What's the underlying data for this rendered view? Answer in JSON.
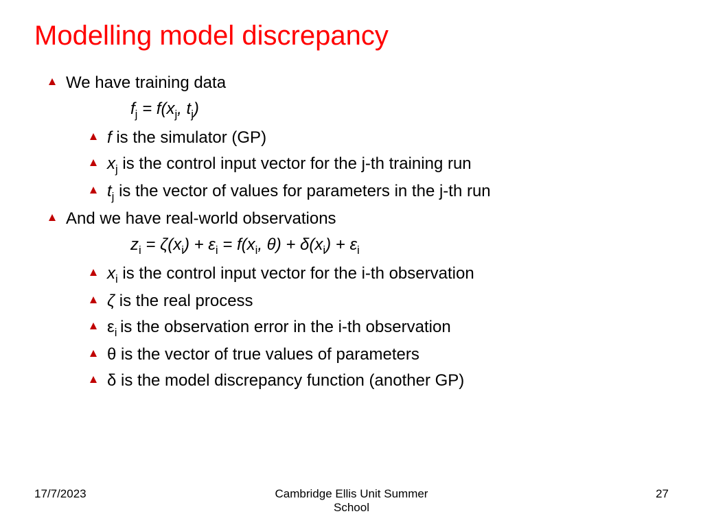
{
  "title": "Modelling model discrepancy",
  "title_color": "#ff0000",
  "title_fontsize": 40,
  "body_fontsize": 24,
  "footer_fontsize": 17,
  "bullet_color": "#c00000",
  "bullet_size": 12,
  "background_color": "#ffffff",
  "text_color": "#000000",
  "bullets": {
    "top1": "We have training data",
    "eq1_html": "<span class='ital'>f</span><span class='sub'>j</span> = <span class='ital'>f</span>(<span class='ital'>x</span><span class='sub'>j</span>, <span class='ital'>t</span><span class='sub'>j</span>)",
    "s1a_html": "<span class='ital'>f</span> is the simulator (GP)",
    "s1b_html": "<span class='ital'>x</span><span class='sub'>j</span> is the control input vector for the j-th training run",
    "s1c_html": "<span class='ital'>t</span><span class='sub'>j</span> is the vector of values for parameters in the j-th run",
    "top2": "And we have real-world observations",
    "eq2_html": "<span class='ital'>z</span><span class='subi'>i</span> = <span class='ital'>ζ</span>(<span class='ital'>x</span><span class='subi'>i</span>) + ε<span class='subi'>i</span> = <span class='ital'>f</span>(<span class='ital'>x</span><span class='subi'>i</span>, θ) + δ(<span class='ital'>x</span><span class='subi'>i</span>) + ε<span class='subi'>i</span>",
    "s2a_html": "<span class='ital'>x</span><span class='subi'>i</span> is the control input vector for the i-th observation",
    "s2b_html": "<span class='ital'>ζ</span> is the real process",
    "s2c_html": "ε<span class='subi'>i </span>is the observation error in the i-th observation",
    "s2d_html": "θ is the vector of true values of parameters",
    "s2e_html": "δ is the model discrepancy function (another GP)"
  },
  "footer": {
    "date": "17/7/2023",
    "center": "Cambridge Ellis Unit Summer\nSchool",
    "page": "27"
  }
}
